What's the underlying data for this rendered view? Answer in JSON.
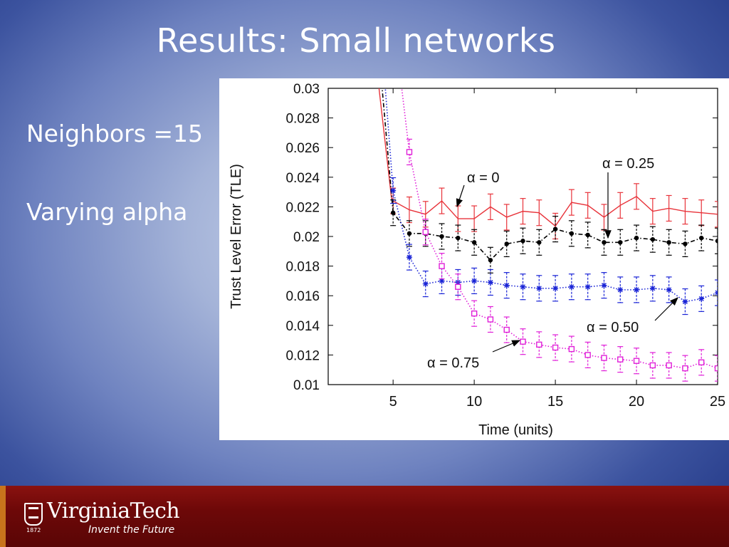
{
  "slide": {
    "title": "Results: Small networks",
    "bullets": [
      "Neighbors =15",
      "Varying alpha"
    ]
  },
  "footer": {
    "logo_text": "VirginiaTech",
    "tagline": "Invent the Future",
    "year": "1872"
  },
  "chart_data": {
    "type": "line",
    "xlabel": "Time (units)",
    "ylabel": "Trust Level Error (TLE)",
    "xlim": [
      1,
      25
    ],
    "ylim": [
      0.01,
      0.03
    ],
    "xticks": [
      5,
      10,
      15,
      20,
      25
    ],
    "yticks": [
      0.01,
      0.012,
      0.014,
      0.016,
      0.018,
      0.02,
      0.022,
      0.024,
      0.026,
      0.028,
      0.03
    ],
    "grid": false,
    "series": [
      {
        "name": "α = 0",
        "color": "#e8333a",
        "marker": "none",
        "line": "solid",
        "pre": [
          [
            4.1,
            0.0303
          ],
          [
            4.9,
            0.0226
          ]
        ],
        "x": [
          5,
          6,
          7,
          8,
          9,
          10,
          11,
          12,
          13,
          14,
          15,
          16,
          17,
          18,
          19,
          20,
          21,
          22,
          23,
          24,
          25
        ],
        "y": [
          0.0224,
          0.0218,
          0.0215,
          0.0224,
          0.0212,
          0.0212,
          0.022,
          0.0213,
          0.0217,
          0.0216,
          0.0207,
          0.0223,
          0.0221,
          0.0213,
          0.0221,
          0.0227,
          0.0217,
          0.0219,
          0.0217,
          0.0216,
          0.0215
        ]
      },
      {
        "name": "α = 0.25",
        "color": "#000000",
        "marker": "dot",
        "line": "dashdot",
        "pre": [
          [
            4.3,
            0.0303
          ],
          [
            5.0,
            0.0216
          ]
        ],
        "x": [
          5,
          6,
          7,
          8,
          9,
          10,
          11,
          12,
          13,
          14,
          15,
          16,
          17,
          18,
          19,
          20,
          21,
          22,
          23,
          24,
          25
        ],
        "y": [
          0.0216,
          0.0202,
          0.0202,
          0.02,
          0.0199,
          0.0196,
          0.0184,
          0.0195,
          0.0197,
          0.0196,
          0.0205,
          0.0202,
          0.0201,
          0.0196,
          0.0196,
          0.0199,
          0.0198,
          0.0196,
          0.0195,
          0.0199,
          0.0197
        ]
      },
      {
        "name": "α = 0.50",
        "color": "#1a24d6",
        "marker": "star",
        "line": "dotted",
        "pre": [
          [
            4.5,
            0.0303
          ],
          [
            5.0,
            0.0231
          ]
        ],
        "x": [
          5,
          6,
          7,
          8,
          9,
          10,
          11,
          12,
          13,
          14,
          15,
          16,
          17,
          18,
          19,
          20,
          21,
          22,
          23,
          24,
          25
        ],
        "y": [
          0.0231,
          0.0186,
          0.0168,
          0.017,
          0.0169,
          0.017,
          0.0169,
          0.0167,
          0.0166,
          0.0165,
          0.0165,
          0.0166,
          0.0166,
          0.0167,
          0.0164,
          0.0164,
          0.0165,
          0.0164,
          0.0156,
          0.0158,
          0.0162
        ]
      },
      {
        "name": "α = 0.75",
        "color": "#e020d8",
        "marker": "square",
        "line": "dotted",
        "pre": [
          [
            5.5,
            0.0303
          ],
          [
            6.0,
            0.0257
          ]
        ],
        "x": [
          6,
          7,
          8,
          9,
          10,
          11,
          12,
          13,
          14,
          15,
          16,
          17,
          18,
          19,
          20,
          21,
          22,
          23,
          24,
          25
        ],
        "y": [
          0.0257,
          0.0203,
          0.018,
          0.0166,
          0.0148,
          0.0144,
          0.0137,
          0.0129,
          0.0127,
          0.0125,
          0.0124,
          0.012,
          0.0118,
          0.0117,
          0.0116,
          0.0113,
          0.0113,
          0.0111,
          0.0115,
          0.0111
        ]
      }
    ],
    "annotations": [
      {
        "text": "α = 0",
        "target_series": 0
      },
      {
        "text": "α = 0.25",
        "target_series": 1
      },
      {
        "text": "α = 0.50",
        "target_series": 2
      },
      {
        "text": "α = 0.75",
        "target_series": 3
      }
    ]
  }
}
